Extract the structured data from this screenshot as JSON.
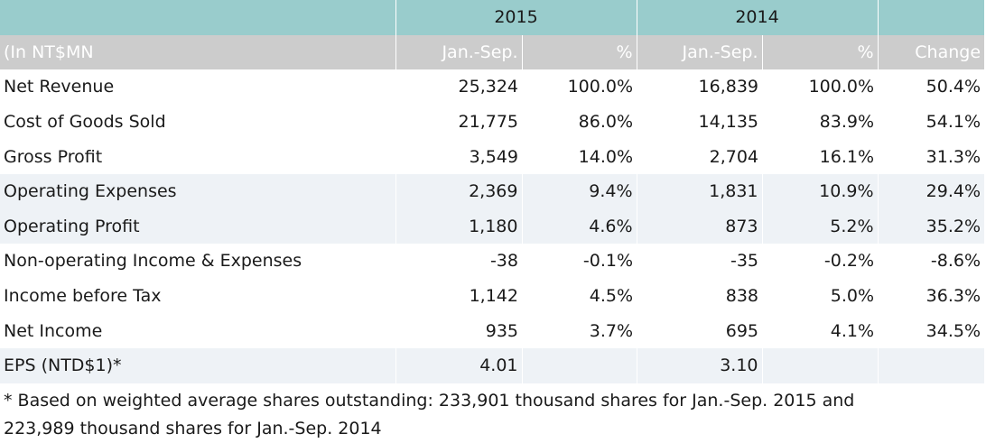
{
  "table": {
    "header_years": [
      "2015",
      "2014"
    ],
    "header_cols": [
      "(In NT$MN",
      "Jan.-Sep.",
      "%",
      "Jan.-Sep.",
      "%",
      "Change"
    ],
    "rows": [
      {
        "label": "Net Revenue",
        "v2015": "25,324",
        "p2015": "100.0%",
        "v2014": "16,839",
        "p2014": "100.0%",
        "change": "50.4%"
      },
      {
        "label": "Cost of Goods Sold",
        "v2015": "21,775",
        "p2015": "86.0%",
        "v2014": "14,135",
        "p2014": "83.9%",
        "change": "54.1%"
      },
      {
        "label": "Gross Profit",
        "v2015": "3,549",
        "p2015": "14.0%",
        "v2014": "2,704",
        "p2014": "16.1%",
        "change": "31.3%"
      },
      {
        "label": "Operating Expenses",
        "v2015": "2,369",
        "p2015": "9.4%",
        "v2014": "1,831",
        "p2014": "10.9%",
        "change": "29.4%"
      },
      {
        "label": "Operating Profit",
        "v2015": "1,180",
        "p2015": "4.6%",
        "v2014": "873",
        "p2014": "5.2%",
        "change": "35.2%"
      },
      {
        "label": "Non-operating Income & Expenses",
        "v2015": "-38",
        "p2015": "-0.1%",
        "v2014": "-35",
        "p2014": "-0.2%",
        "change": "-8.6%"
      },
      {
        "label": "Income before Tax",
        "v2015": "1,142",
        "p2015": "4.5%",
        "v2014": "838",
        "p2014": "5.0%",
        "change": "36.3%"
      },
      {
        "label": "Net Income",
        "v2015": "935",
        "p2015": "3.7%",
        "v2014": "695",
        "p2014": "4.1%",
        "change": "34.5%"
      },
      {
        "label": "EPS (NTD$1)*",
        "v2015": "4.01",
        "p2015": "",
        "v2014": "3.10",
        "p2014": "",
        "change": ""
      }
    ]
  },
  "footnote": "* Based on weighted average shares outstanding: 233,901 thousand shares for Jan.-Sep. 2015 and 223,989 thousand shares for Jan.-Sep. 2014",
  "colors": {
    "header_top": "#99cccc",
    "header_sub": "#cccccc",
    "alt_row": "#eef2f6"
  }
}
